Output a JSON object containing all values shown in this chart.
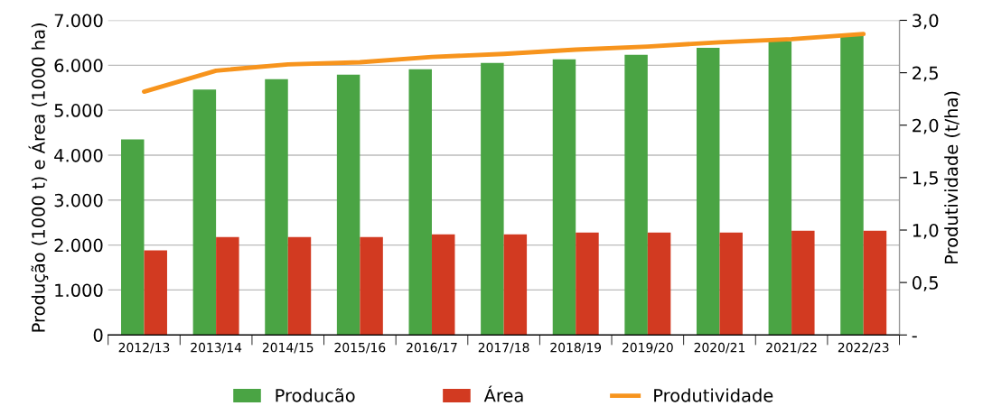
{
  "chart_data": {
    "type": "bar",
    "ylabel": "Produção (1000 t) e Área (1000 ha)",
    "y2label": "Produtividade (t/ha)",
    "categories": [
      "2012/13",
      "2013/14",
      "2014/15",
      "2015/16",
      "2016/17",
      "2017/18",
      "2018/19",
      "2019/20",
      "2020/21",
      "2021/22",
      "2022/23"
    ],
    "series": [
      {
        "name": "Producão",
        "color": "#4aa444",
        "values": [
          4350,
          5460,
          5690,
          5790,
          5910,
          6050,
          6130,
          6230,
          6390,
          6530,
          6670
        ]
      },
      {
        "name": "Área",
        "color": "#d23a21",
        "values": [
          1880,
          2180,
          2180,
          2180,
          2240,
          2240,
          2280,
          2280,
          2280,
          2320,
          2320
        ]
      },
      {
        "name": "Produtividade",
        "type": "line",
        "axis": "y2",
        "color": "#f7941d",
        "values": [
          2.32,
          2.52,
          2.58,
          2.6,
          2.65,
          2.68,
          2.72,
          2.75,
          2.79,
          2.82,
          2.87
        ]
      }
    ],
    "ylim": [
      0,
      7000
    ],
    "yticks": [
      {
        "value": 0,
        "label": "0"
      },
      {
        "value": 1000,
        "label": "1.000"
      },
      {
        "value": 2000,
        "label": "2.000"
      },
      {
        "value": 3000,
        "label": "3.000"
      },
      {
        "value": 4000,
        "label": "4.000"
      },
      {
        "value": 5000,
        "label": "5.000"
      },
      {
        "value": 6000,
        "label": "6.000"
      },
      {
        "value": 7000,
        "label": "7.000"
      }
    ],
    "y2lim": [
      0,
      3.0
    ],
    "y2ticks": [
      {
        "value": 0,
        "label": "-"
      },
      {
        "value": 0.5,
        "label": "0,5"
      },
      {
        "value": 1.0,
        "label": "1,0"
      },
      {
        "value": 1.5,
        "label": "1,5"
      },
      {
        "value": 2.0,
        "label": "2,0"
      },
      {
        "value": 2.5,
        "label": "2,5"
      },
      {
        "value": 3.0,
        "label": "3,0"
      }
    ],
    "grid": "y",
    "legend": "bottom"
  }
}
